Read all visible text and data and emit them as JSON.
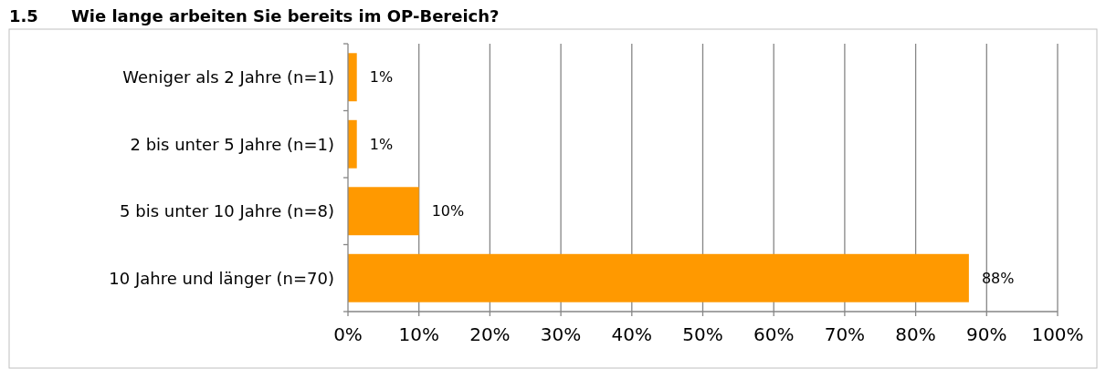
{
  "chart_data": {
    "type": "bar",
    "orientation": "horizontal",
    "title": "1.5  Wie lange arbeiten Sie bereits im OP-Bereich?",
    "categories": [
      "Weniger als 2 Jahre (n=1)",
      "2 bis unter 5 Jahre (n=1)",
      "5 bis unter 10 Jahre (n=8)",
      "10 Jahre und länger (n=70)"
    ],
    "values": [
      1.25,
      1.25,
      10,
      87.5
    ],
    "value_labels": [
      "1%",
      "1%",
      "10%",
      "88%"
    ],
    "color": "#ff9900",
    "xlim": [
      0,
      100
    ],
    "xticks": [
      {
        "value": 0,
        "label": "0%"
      },
      {
        "value": 10,
        "label": "10%"
      },
      {
        "value": 20,
        "label": "20%"
      },
      {
        "value": 30,
        "label": "30%"
      },
      {
        "value": 40,
        "label": "40%"
      },
      {
        "value": 50,
        "label": "50%"
      },
      {
        "value": 60,
        "label": "60%"
      },
      {
        "value": 70,
        "label": "70%"
      },
      {
        "value": 80,
        "label": "80%"
      },
      {
        "value": 90,
        "label": "90%"
      },
      {
        "value": 100,
        "label": "100%"
      }
    ],
    "grid": "x"
  }
}
